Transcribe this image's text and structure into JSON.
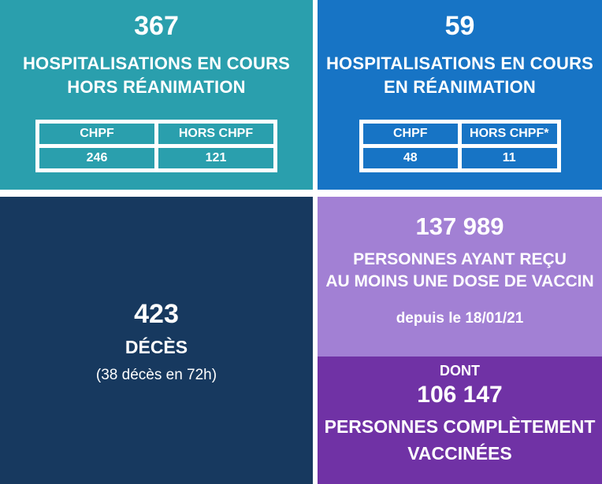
{
  "panels": {
    "hosp_hors_rea": {
      "value": "367",
      "title_line1": "HOSPITALISATIONS EN COURS",
      "title_line2": "HORS RÉANIMATION",
      "table": {
        "headers": [
          "CHPF",
          "HORS CHPF"
        ],
        "values": [
          "246",
          "121"
        ]
      }
    },
    "hosp_rea": {
      "value": "59",
      "title_line1": "HOSPITALISATIONS EN COURS",
      "title_line2": "EN RÉANIMATION",
      "table": {
        "headers": [
          "CHPF",
          "HORS CHPF*"
        ],
        "values": [
          "48",
          "11"
        ]
      }
    },
    "deces": {
      "value": "423",
      "label": "DÉCÈS",
      "note": "(38 décès en 72h)"
    },
    "vaccin_une_dose": {
      "value": "137 989",
      "title_line1": "PERSONNES AYANT REÇU",
      "title_line2": "AU MOINS UNE DOSE DE VACCIN",
      "note": "depuis le 18/01/21"
    },
    "vaccin_complet": {
      "prefix": "DONT",
      "value": "106 147",
      "title_line1": "PERSONNES COMPLÈTEMENT",
      "title_line2": "VACCINÉES"
    }
  },
  "colors": {
    "teal": "#2A9FAD",
    "blue": "#1774C5",
    "navy": "#17395F",
    "purple_light": "#A280D4",
    "purple_dark": "#7032A5",
    "text": "#FFFFFF",
    "gap": "#FFFFFF"
  }
}
